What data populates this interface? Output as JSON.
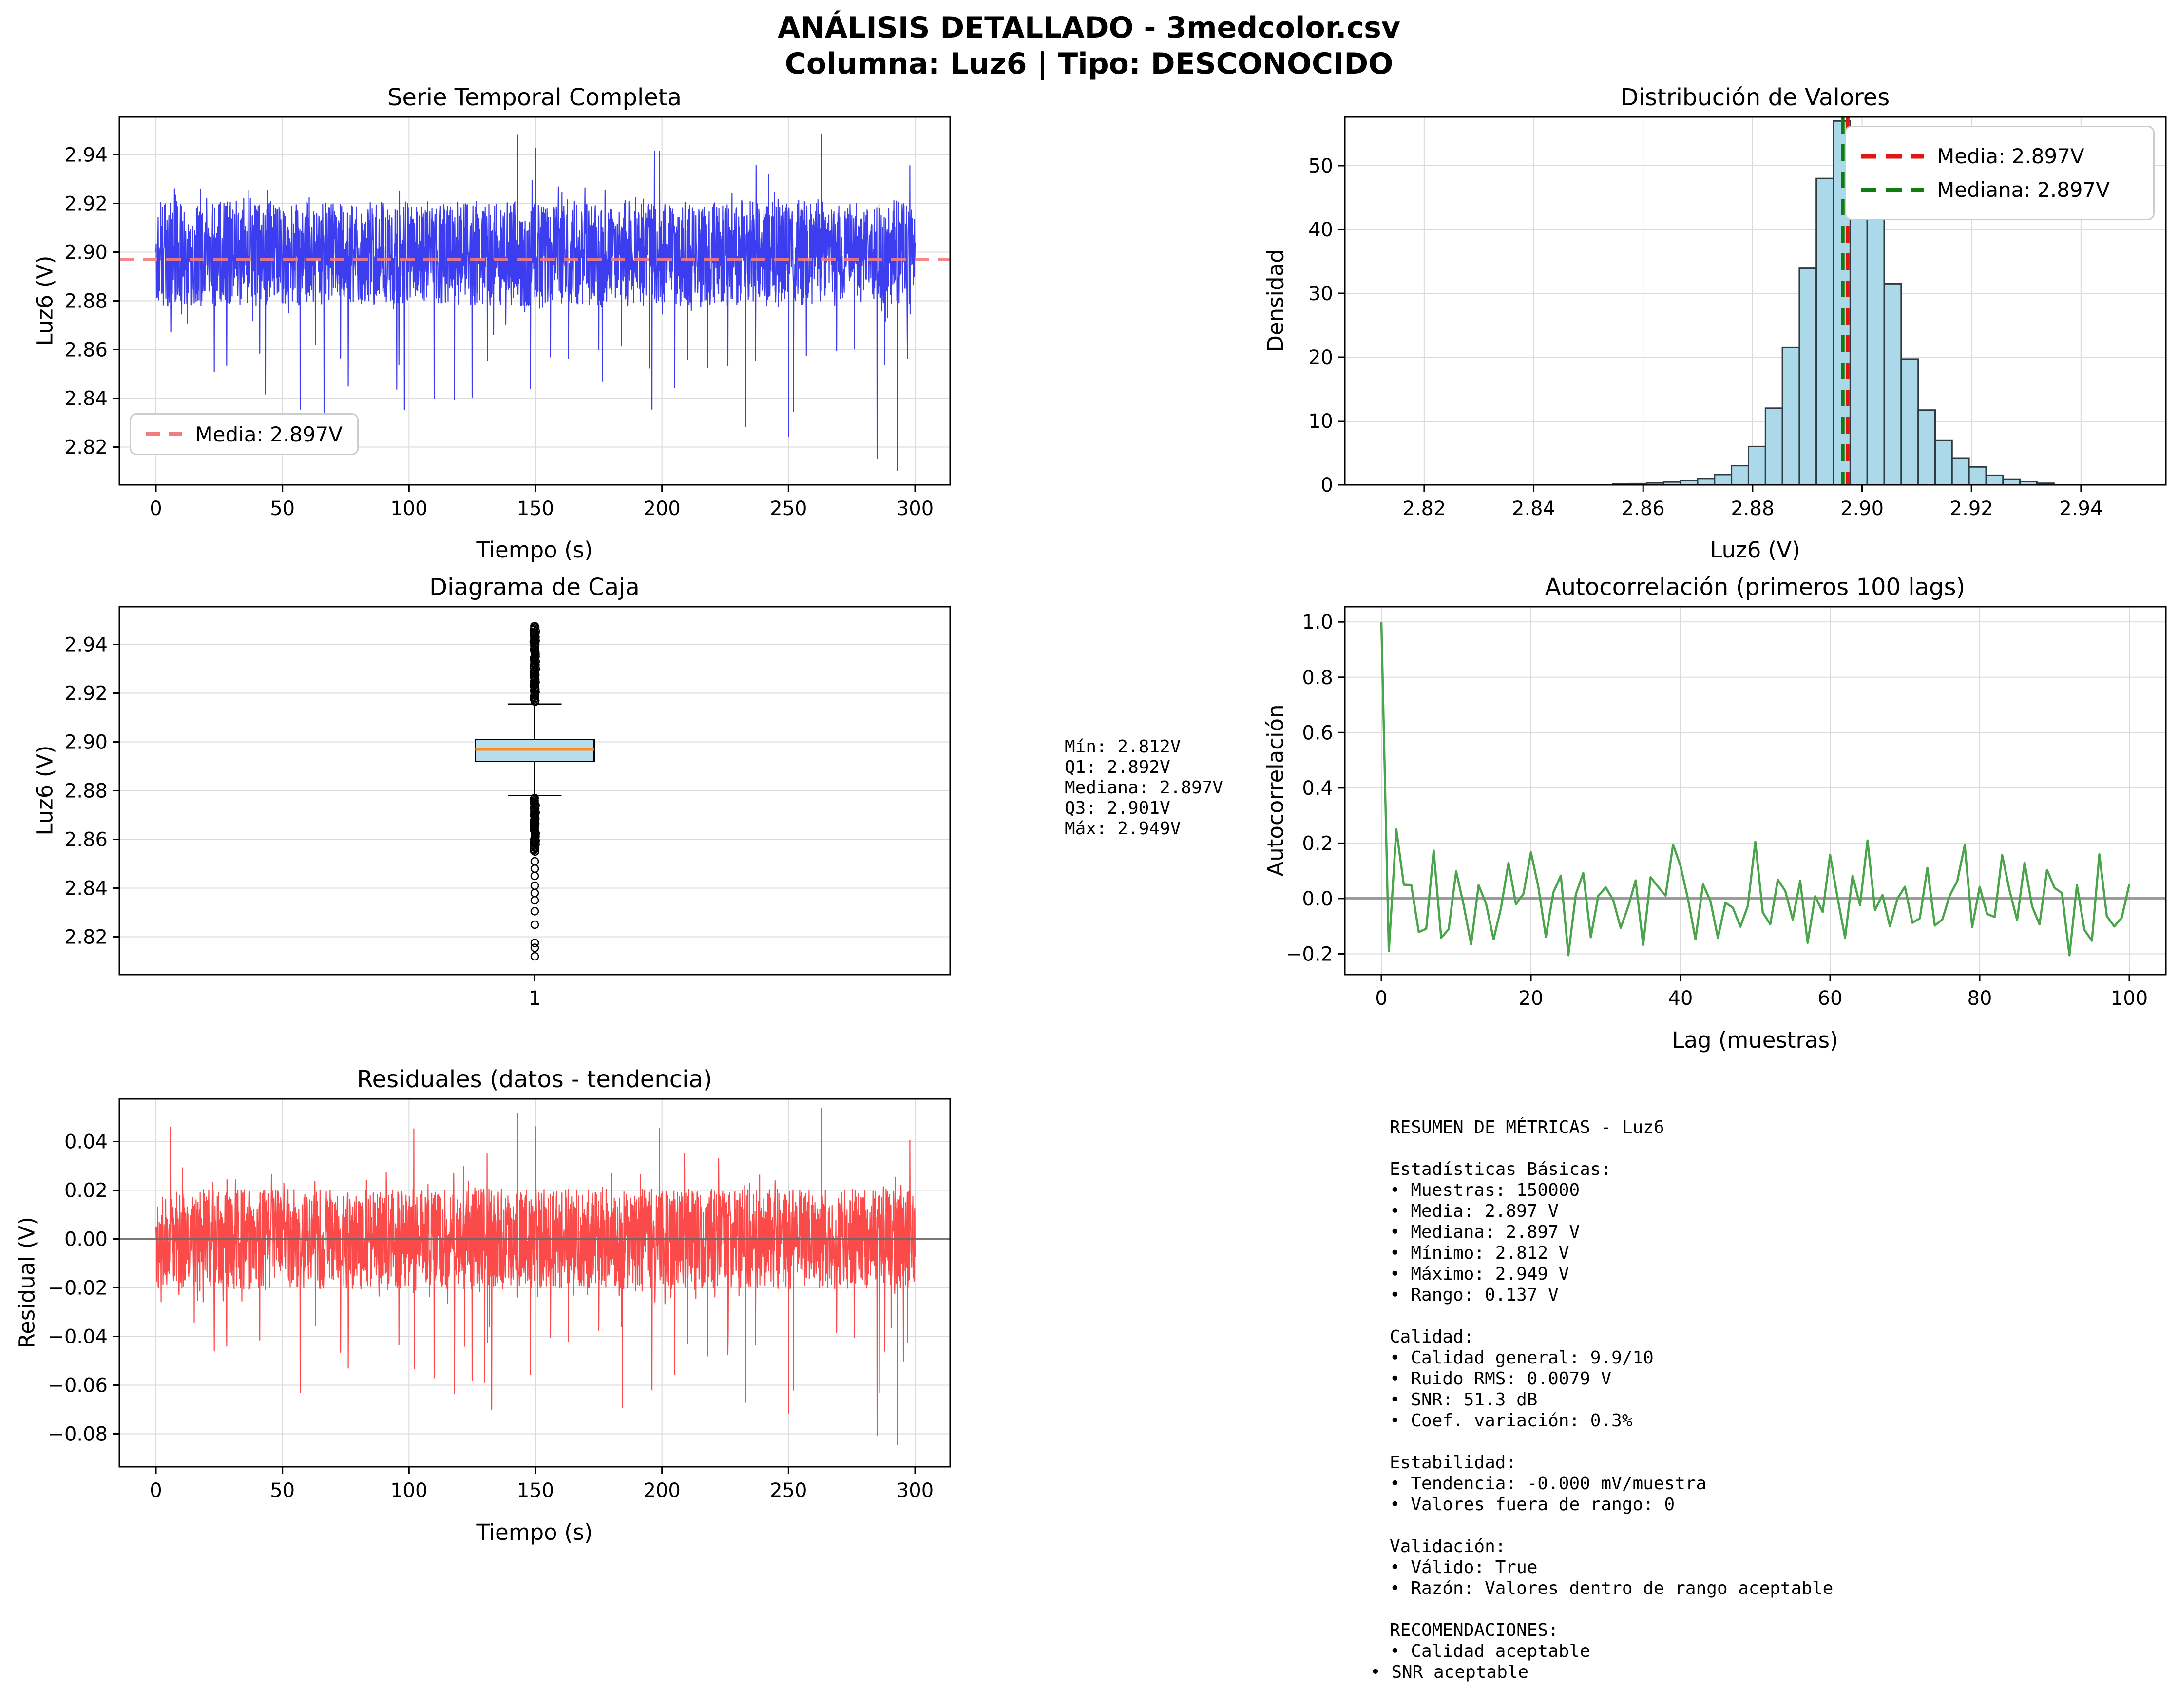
{
  "header": {
    "title_line1": "ANÁLISIS DETALLADO - 3medcolor.csv",
    "title_line2": "Columna: Luz6 | Tipo: DESCONOCIDO"
  },
  "colors": {
    "series_blue": "#3d3df0",
    "mean_salmon": "#f47b7b",
    "hist_fill": "#abd9ea",
    "hist_edge": "#2f3a42",
    "mean_red": "#e11511",
    "median_green": "#0f7d0f",
    "box_fill": "#b7dcec",
    "box_median_orange": "#ff8c1a",
    "acf_green": "#4aa44a",
    "resid_red": "#fb4a4a",
    "zero_gray": "#808080",
    "grid_gray": "#dadada"
  },
  "panels": {
    "p1": {
      "title": "Serie Temporal Completa",
      "xlabel": "Tiempo (s)",
      "ylabel": "Luz6 (V)",
      "xticks": {
        "values": [
          0,
          50,
          100,
          150,
          200,
          250,
          300
        ],
        "labels": [
          "0",
          "50",
          "100",
          "150",
          "200",
          "250",
          "300"
        ]
      },
      "yticks": {
        "values": [
          2.82,
          2.84,
          2.86,
          2.88,
          2.9,
          2.92,
          2.94
        ],
        "labels": [
          "2.82",
          "2.84",
          "2.86",
          "2.88",
          "2.90",
          "2.92",
          "2.94"
        ]
      },
      "legend_label": "Media: 2.897V"
    },
    "p2": {
      "title": "Distribución de Valores",
      "xlabel": "Luz6 (V)",
      "ylabel": "Densidad",
      "xticks": {
        "values": [
          2.82,
          2.84,
          2.86,
          2.88,
          2.9,
          2.92,
          2.94
        ],
        "labels": [
          "2.82",
          "2.84",
          "2.86",
          "2.88",
          "2.90",
          "2.92",
          "2.94"
        ]
      },
      "yticks": {
        "values": [
          0,
          10,
          20,
          30,
          40,
          50
        ],
        "labels": [
          "0",
          "10",
          "20",
          "30",
          "40",
          "50"
        ]
      },
      "legend_mean": "Media: 2.897V",
      "legend_median": "Mediana: 2.897V"
    },
    "p3": {
      "title": "Diagrama de Caja",
      "ylabel": "Luz6 (V)",
      "xticks": {
        "values": [
          1
        ],
        "labels": [
          "1"
        ]
      },
      "yticks": {
        "values": [
          2.82,
          2.84,
          2.86,
          2.88,
          2.9,
          2.92,
          2.94
        ],
        "labels": [
          "2.82",
          "2.84",
          "2.86",
          "2.88",
          "2.90",
          "2.92",
          "2.94"
        ]
      }
    },
    "p4": {
      "title": "Autocorrelación (primeros 100 lags)",
      "xlabel": "Lag (muestras)",
      "ylabel": "Autocorrelación",
      "xticks": {
        "values": [
          0,
          20,
          40,
          60,
          80,
          100
        ],
        "labels": [
          "0",
          "20",
          "40",
          "60",
          "80",
          "100"
        ]
      },
      "yticks": {
        "values": [
          -0.2,
          0.0,
          0.2,
          0.4,
          0.6,
          0.8,
          1.0
        ],
        "labels": [
          "−0.2",
          "0.0",
          "0.2",
          "0.4",
          "0.6",
          "0.8",
          "1.0"
        ]
      }
    },
    "p5": {
      "title": "Residuales (datos - tendencia)",
      "xlabel": "Tiempo (s)",
      "ylabel": "Residual (V)",
      "xticks": {
        "values": [
          0,
          50,
          100,
          150,
          200,
          250,
          300
        ],
        "labels": [
          "0",
          "50",
          "100",
          "150",
          "200",
          "250",
          "300"
        ]
      },
      "yticks": {
        "values": [
          0.04,
          0.02,
          0.0,
          -0.02,
          -0.04,
          -0.06,
          -0.08
        ],
        "labels": [
          "0.04",
          "0.02",
          "0.00",
          "−0.02",
          "−0.04",
          "−0.06",
          "−0.08"
        ]
      }
    }
  },
  "stats_box": {
    "lines": [
      "Mín: 2.812V",
      "Q1: 2.892V",
      "Mediana: 2.897V",
      "Q3: 2.901V",
      "Máx: 2.949V"
    ]
  },
  "metrics_box": {
    "lines": [
      "RESUMEN DE MÉTRICAS - Luz6",
      "",
      "Estadísticas Básicas:",
      "• Muestras: 150000",
      "• Media: 2.897 V",
      "• Mediana: 2.897 V",
      "• Mínimo: 2.812 V",
      "• Máximo: 2.949 V",
      "• Rango: 0.137 V",
      "",
      "Calidad:",
      "• Calidad general: 9.9/10",
      "• Ruido RMS: 0.0079 V",
      "• SNR: 51.3 dB",
      "• Coef. variación: 0.3%",
      "",
      "Estabilidad:",
      "• Tendencia: -0.000 mV/muestra",
      "• Valores fuera de rango: 0",
      "",
      "Validación:",
      "• Válido: True",
      "• Razón: Valores dentro de rango aceptable",
      "",
      "RECOMENDACIONES:",
      "• Calidad aceptable",
      "• SNR aceptable"
    ],
    "outdent_last": true
  },
  "chart_data": [
    {
      "id": "serie_temporal",
      "type": "line",
      "title": "Serie Temporal Completa",
      "xlabel": "Tiempo (s)",
      "ylabel": "Luz6 (V)",
      "xlim": [
        -14.4,
        313.9
      ],
      "ylim": [
        2.8045,
        2.9555
      ],
      "mean_line": 2.897,
      "legend": [
        "Media: 2.897V"
      ],
      "legend_position": "lower-left",
      "grid": true,
      "signal": {
        "kind": "noise-series",
        "t_range": [
          0,
          300
        ],
        "n_points": 2800,
        "seed": 11,
        "baseline": 2.8995,
        "dense_band": [
          2.878,
          2.921
        ],
        "observed_min": 2.8105,
        "observed_max": 2.949,
        "notable_extremes": [
          {
            "t": 23,
            "v": 2.851
          },
          {
            "t": 28,
            "v": 2.8535
          },
          {
            "t": 41,
            "v": 2.8585
          },
          {
            "t": 57,
            "v": 2.8355
          },
          {
            "t": 63,
            "v": 2.862
          },
          {
            "t": 73,
            "v": 2.8565
          },
          {
            "t": 76,
            "v": 2.845
          },
          {
            "t": 96,
            "v": 2.854
          },
          {
            "t": 110,
            "v": 2.84
          },
          {
            "t": 118,
            "v": 2.8395
          },
          {
            "t": 125,
            "v": 2.8405
          },
          {
            "t": 131,
            "v": 2.8555
          },
          {
            "t": 143,
            "v": 2.948
          },
          {
            "t": 148,
            "v": 2.844
          },
          {
            "t": 150,
            "v": 2.9425
          },
          {
            "t": 156,
            "v": 2.857
          },
          {
            "t": 163,
            "v": 2.8565
          },
          {
            "t": 175,
            "v": 2.86
          },
          {
            "t": 184,
            "v": 2.8615
          },
          {
            "t": 196,
            "v": 2.8355
          },
          {
            "t": 197,
            "v": 2.9415
          },
          {
            "t": 199,
            "v": 2.9415
          },
          {
            "t": 205,
            "v": 2.8445
          },
          {
            "t": 210,
            "v": 2.856
          },
          {
            "t": 218,
            "v": 2.8525
          },
          {
            "t": 226,
            "v": 2.8535
          },
          {
            "t": 233,
            "v": 2.8285
          },
          {
            "t": 237,
            "v": 2.8555
          },
          {
            "t": 250,
            "v": 2.8245
          },
          {
            "t": 252,
            "v": 2.8345
          },
          {
            "t": 257,
            "v": 2.8575
          },
          {
            "t": 263,
            "v": 2.9485
          },
          {
            "t": 269,
            "v": 2.8595
          },
          {
            "t": 276,
            "v": 2.8605
          },
          {
            "t": 285,
            "v": 2.8155
          },
          {
            "t": 288,
            "v": 2.854
          },
          {
            "t": 293,
            "v": 2.8105
          },
          {
            "t": 297,
            "v": 2.8565
          },
          {
            "t": 298,
            "v": 2.9355
          }
        ]
      }
    },
    {
      "id": "distribucion",
      "type": "bar",
      "title": "Distribución de Valores",
      "xlabel": "Luz6 (V)",
      "ylabel": "Densidad",
      "xlim": [
        2.8055,
        2.9555
      ],
      "ylim": [
        0,
        57.7
      ],
      "grid": true,
      "bin_width": 0.0031,
      "bars": [
        [
          2.856,
          0.15
        ],
        [
          2.8591,
          0.2
        ],
        [
          2.8622,
          0.3
        ],
        [
          2.8653,
          0.45
        ],
        [
          2.8684,
          0.7
        ],
        [
          2.8715,
          1.0
        ],
        [
          2.8746,
          1.6
        ],
        [
          2.8777,
          3.0
        ],
        [
          2.8808,
          6.0
        ],
        [
          2.8839,
          12.0
        ],
        [
          2.887,
          21.5
        ],
        [
          2.8901,
          34.0
        ],
        [
          2.8932,
          48.0
        ],
        [
          2.8963,
          57.0
        ],
        [
          2.8994,
          55.0
        ],
        [
          2.9025,
          45.5
        ],
        [
          2.9056,
          31.5
        ],
        [
          2.9087,
          19.7
        ],
        [
          2.9118,
          11.7
        ],
        [
          2.9149,
          7.0
        ],
        [
          2.918,
          4.2
        ],
        [
          2.9211,
          2.8
        ],
        [
          2.9242,
          1.5
        ],
        [
          2.9273,
          0.9
        ],
        [
          2.9304,
          0.5
        ],
        [
          2.9335,
          0.25
        ]
      ],
      "mean": 2.897,
      "median": 2.897,
      "mean_line_x": 2.8974,
      "median_line_x": 2.8965,
      "legend": [
        "Media: 2.897V",
        "Mediana: 2.897V"
      ],
      "legend_position": "upper-right"
    },
    {
      "id": "diagrama_caja",
      "type": "box",
      "title": "Diagrama de Caja",
      "ylabel": "Luz6 (V)",
      "category_label": "1",
      "ylim": [
        2.8045,
        2.9555
      ],
      "grid": true,
      "min": 2.812,
      "q1": 2.892,
      "median": 2.897,
      "q3": 2.901,
      "max": 2.949,
      "whisker_low": 2.878,
      "whisker_high": 2.9155,
      "outliers_dense_high": [
        2.9165,
        2.948
      ],
      "outliers_dense_low": [
        2.855,
        2.8775
      ],
      "outliers_sparse_low": [
        2.851,
        2.848,
        2.845,
        2.841,
        2.838,
        2.835,
        2.8305,
        2.825,
        2.8175,
        2.8155,
        2.812
      ],
      "outliers_sparse_high": [
        2.9415,
        2.944,
        2.9475
      ]
    },
    {
      "id": "autocorrelacion",
      "type": "line",
      "title": "Autocorrelación (primeros 100 lags)",
      "xlabel": "Lag (muestras)",
      "ylabel": "Autocorrelación",
      "xlim": [
        -4.9,
        104.9
      ],
      "ylim": [
        -0.275,
        1.055
      ],
      "grid": true,
      "n_lags": 100,
      "seed": 23,
      "values_head": [
        1.0,
        -0.19,
        0.25,
        0.05
      ],
      "oscillation_range": [
        -0.21,
        0.215
      ],
      "keypoints": {
        "25": -0.205,
        "39": 0.195,
        "50": 0.205,
        "57": -0.16,
        "65": 0.21,
        "78": 0.193,
        "86": 0.13,
        "92": -0.205,
        "96": 0.16
      },
      "zero_line": 0.0
    },
    {
      "id": "residuales",
      "type": "line",
      "title": "Residuales (datos - tendencia)",
      "xlabel": "Tiempo (s)",
      "ylabel": "Residual (V)",
      "xlim": [
        -14.4,
        313.9
      ],
      "ylim": [
        -0.0935,
        0.0575
      ],
      "grid": true,
      "zero_line": 0.0,
      "signal": {
        "kind": "noise-series",
        "t_range": [
          0,
          300
        ],
        "n_points": 2800,
        "seed": 47,
        "baseline": 0.0,
        "dense_band": [
          -0.0205,
          0.0205
        ],
        "observed_min": -0.0845,
        "observed_max": 0.0535,
        "notable_extremes": [
          {
            "t": 23,
            "v": -0.046
          },
          {
            "t": 28,
            "v": -0.044
          },
          {
            "t": 41,
            "v": -0.0415
          },
          {
            "t": 57,
            "v": -0.063
          },
          {
            "t": 63,
            "v": -0.0355
          },
          {
            "t": 73,
            "v": -0.0465
          },
          {
            "t": 76,
            "v": -0.053
          },
          {
            "t": 96,
            "v": -0.0435
          },
          {
            "t": 110,
            "v": -0.057
          },
          {
            "t": 118,
            "v": -0.0585
          },
          {
            "t": 122,
            "v": -0.044
          },
          {
            "t": 125,
            "v": -0.058
          },
          {
            "t": 131,
            "v": -0.0425
          },
          {
            "t": 143,
            "v": 0.0515
          },
          {
            "t": 148,
            "v": -0.0555
          },
          {
            "t": 150,
            "v": 0.046
          },
          {
            "t": 156,
            "v": -0.0405
          },
          {
            "t": 163,
            "v": -0.042
          },
          {
            "t": 175,
            "v": -0.0375
          },
          {
            "t": 184,
            "v": -0.036
          },
          {
            "t": 196,
            "v": -0.062
          },
          {
            "t": 199,
            "v": 0.0455
          },
          {
            "t": 205,
            "v": -0.0555
          },
          {
            "t": 210,
            "v": -0.043
          },
          {
            "t": 218,
            "v": -0.048
          },
          {
            "t": 226,
            "v": -0.0475
          },
          {
            "t": 233,
            "v": -0.067
          },
          {
            "t": 237,
            "v": -0.0435
          },
          {
            "t": 250,
            "v": -0.0715
          },
          {
            "t": 252,
            "v": -0.062
          },
          {
            "t": 263,
            "v": 0.0535
          },
          {
            "t": 269,
            "v": -0.0385
          },
          {
            "t": 276,
            "v": -0.0405
          },
          {
            "t": 285,
            "v": -0.0805
          },
          {
            "t": 288,
            "v": -0.046
          },
          {
            "t": 293,
            "v": -0.0845
          },
          {
            "t": 297,
            "v": -0.0425
          },
          {
            "t": 298,
            "v": 0.0405
          }
        ]
      }
    }
  ]
}
